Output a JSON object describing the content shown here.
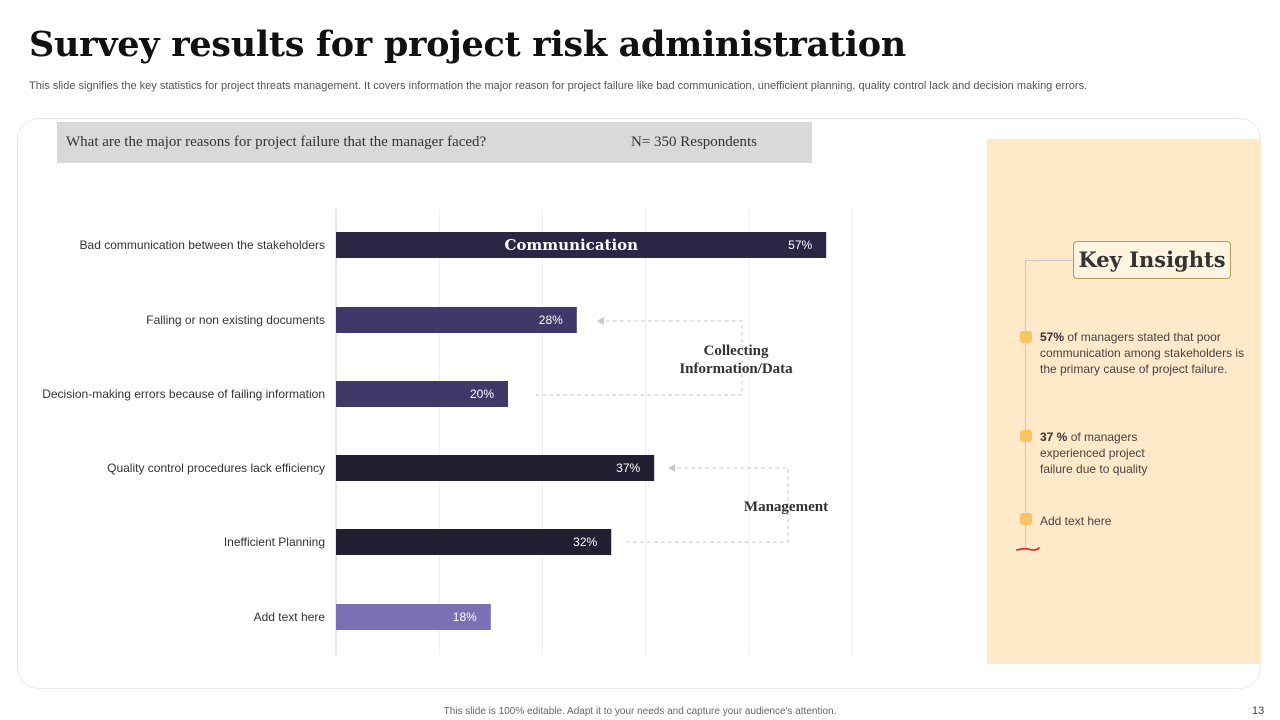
{
  "slide": {
    "title": "Survey results for project risk administration",
    "subtitle": "This slide signifies the key statistics for project threats management. It covers information the major reason for project failure like bad communication, unefficient planning, quality control lack and decision making errors.",
    "footer": "This slide is 100% editable. Adapt it to your needs and capture your audience's attention.",
    "page_number": "13"
  },
  "question": {
    "text": "What are the major reasons for project failure that the manager faced?",
    "respondents": "N= 350 Respondents"
  },
  "chart_data": {
    "type": "bar",
    "orientation": "horizontal",
    "categories": [
      "Bad communication between the stakeholders",
      "Falling or non existing documents",
      "Decision-making errors because of failing information",
      "Quality control procedures lack efficiency",
      "Inefficient Planning",
      "Add text here"
    ],
    "values": [
      57,
      28,
      20,
      37,
      32,
      18
    ],
    "value_labels": [
      "57%",
      "28%",
      "20%",
      "37%",
      "32%",
      "18%"
    ],
    "bar_colors": [
      "#2b2645",
      "#3e3969",
      "#3e3969",
      "#221f33",
      "#221f33",
      "#7b70b3"
    ],
    "xlim": [
      0,
      60
    ],
    "grid": true,
    "annotations": {
      "bar_label": "Communication",
      "group_1": "Collecting Information/Data",
      "group_2": "Management"
    }
  },
  "insights": {
    "title": "Key Insights",
    "items": [
      {
        "strong": "57%",
        "text": " of managers stated that poor communication among stakeholders is the primary cause of project failure."
      },
      {
        "strong": "37 %",
        "text": " of managers experienced project failure due to quality"
      },
      {
        "strong": "",
        "text": "Add text here"
      }
    ],
    "dot_color": "#f9c464",
    "panel_color": "#ffe9c9"
  }
}
